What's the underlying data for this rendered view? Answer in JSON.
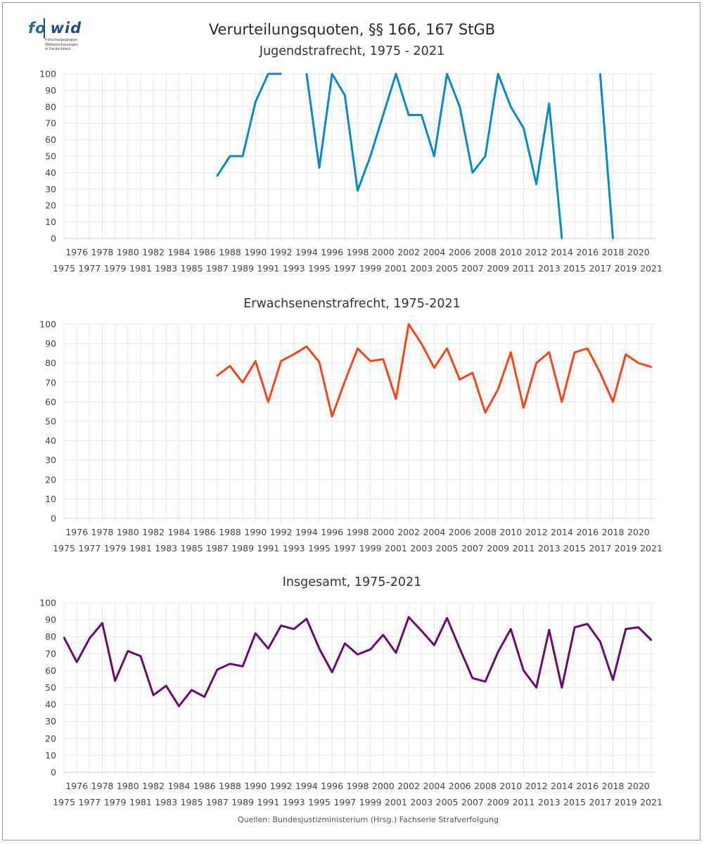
{
  "logo": {
    "word_fo": "fo",
    "word_wid": "wid",
    "subtitle_lines": [
      "Forschungsgruppe",
      "Weltanschauungen",
      "in Deutschland"
    ]
  },
  "title": "Verurteilungsquoten, §§ 166, 167 StGB",
  "source": "Quellen: Bundesjustizministerium (Hrsg.) Fachserie Strafverfolgung",
  "chart_data": [
    {
      "type": "line",
      "title": "Jugendstrafrecht, 1975 - 2021",
      "color": "#0a88c8",
      "ylim": [
        0,
        100
      ],
      "yticks": [
        0,
        10,
        20,
        30,
        40,
        50,
        60,
        70,
        80,
        90,
        100
      ],
      "grid": true,
      "x": [
        "1975",
        "1976",
        "1977",
        "1978",
        "1979",
        "1980",
        "1981",
        "1982",
        "1983",
        "1984",
        "1985",
        "1986",
        "1987",
        "1988",
        "1989",
        "1990",
        "1991",
        "1992",
        "1993",
        "1994",
        "1995",
        "1996",
        "1997",
        "1998",
        "1999",
        "2000",
        "2001",
        "2002",
        "2003",
        "2004",
        "2005",
        "2006",
        "2007",
        "2008",
        "2009",
        "2010",
        "2011",
        "2012",
        "2013",
        "2014",
        "2015",
        "2016",
        "2017",
        "2018",
        "2019",
        "2020",
        "2021"
      ],
      "series": [
        {
          "values": [
            null,
            null,
            null,
            null,
            null,
            null,
            null,
            null,
            null,
            null,
            null,
            null,
            38,
            50,
            50,
            83,
            100,
            100,
            null,
            100,
            43,
            100,
            87,
            29,
            50,
            75,
            100,
            75,
            75,
            50,
            100,
            80,
            40,
            50,
            100,
            80,
            67,
            33,
            82,
            0,
            null,
            null,
            100,
            0,
            null,
            null,
            null
          ]
        }
      ]
    },
    {
      "type": "line",
      "title": "Erwachsenenstrafrecht, 1975-2021",
      "color": "#f4451b",
      "ylim": [
        0,
        100
      ],
      "yticks": [
        0,
        10,
        20,
        30,
        40,
        50,
        60,
        70,
        80,
        90,
        100
      ],
      "grid": true,
      "x": [
        "1975",
        "1976",
        "1977",
        "1978",
        "1979",
        "1980",
        "1981",
        "1982",
        "1983",
        "1984",
        "1985",
        "1986",
        "1987",
        "1988",
        "1989",
        "1990",
        "1991",
        "1992",
        "1993",
        "1994",
        "1995",
        "1996",
        "1997",
        "1998",
        "1999",
        "2000",
        "2001",
        "2002",
        "2003",
        "2004",
        "2005",
        "2006",
        "2007",
        "2008",
        "2009",
        "2010",
        "2011",
        "2012",
        "2013",
        "2014",
        "2015",
        "2016",
        "2017",
        "2018",
        "2019",
        "2020",
        "2021"
      ],
      "series": [
        {
          "values": [
            null,
            null,
            null,
            null,
            null,
            null,
            null,
            null,
            null,
            null,
            null,
            null,
            73.5,
            78.5,
            70,
            81,
            60,
            81,
            84.5,
            88.5,
            80.5,
            52.5,
            70.5,
            87.5,
            81,
            82,
            61.5,
            100,
            90,
            77.5,
            87.5,
            71.5,
            75,
            54.5,
            66.5,
            85.5,
            57,
            80,
            85.5,
            60,
            85.5,
            87.5,
            75,
            60,
            84.5,
            80,
            78
          ]
        }
      ]
    },
    {
      "type": "line",
      "title": "Insgesamt, 1975-2021",
      "color": "#6a0a6e",
      "ylim": [
        0,
        100
      ],
      "yticks": [
        0,
        10,
        20,
        30,
        40,
        50,
        60,
        70,
        80,
        90,
        100
      ],
      "grid": true,
      "x": [
        "1975",
        "1976",
        "1977",
        "1978",
        "1979",
        "1980",
        "1981",
        "1982",
        "1983",
        "1984",
        "1985",
        "1986",
        "1987",
        "1988",
        "1989",
        "1990",
        "1991",
        "1992",
        "1993",
        "1994",
        "1995",
        "1996",
        "1997",
        "1998",
        "1999",
        "2000",
        "2001",
        "2002",
        "2003",
        "2004",
        "2005",
        "2006",
        "2007",
        "2008",
        "2009",
        "2010",
        "2011",
        "2012",
        "2013",
        "2014",
        "2015",
        "2016",
        "2017",
        "2018",
        "2019",
        "2020",
        "2021"
      ],
      "series": [
        {
          "values": [
            79.5,
            65,
            79,
            88,
            54,
            71.5,
            68.5,
            45.5,
            51,
            39,
            48.5,
            44.5,
            60.5,
            64,
            62.5,
            82,
            73,
            86.5,
            84.5,
            90.5,
            73,
            59,
            76,
            69.5,
            72.5,
            81,
            70.5,
            91.5,
            83.5,
            75,
            91,
            73,
            55.5,
            53.5,
            71,
            84.5,
            60,
            50,
            84,
            50,
            85.5,
            87.5,
            77,
            54.5,
            84.5,
            85.5,
            78
          ]
        }
      ]
    }
  ]
}
